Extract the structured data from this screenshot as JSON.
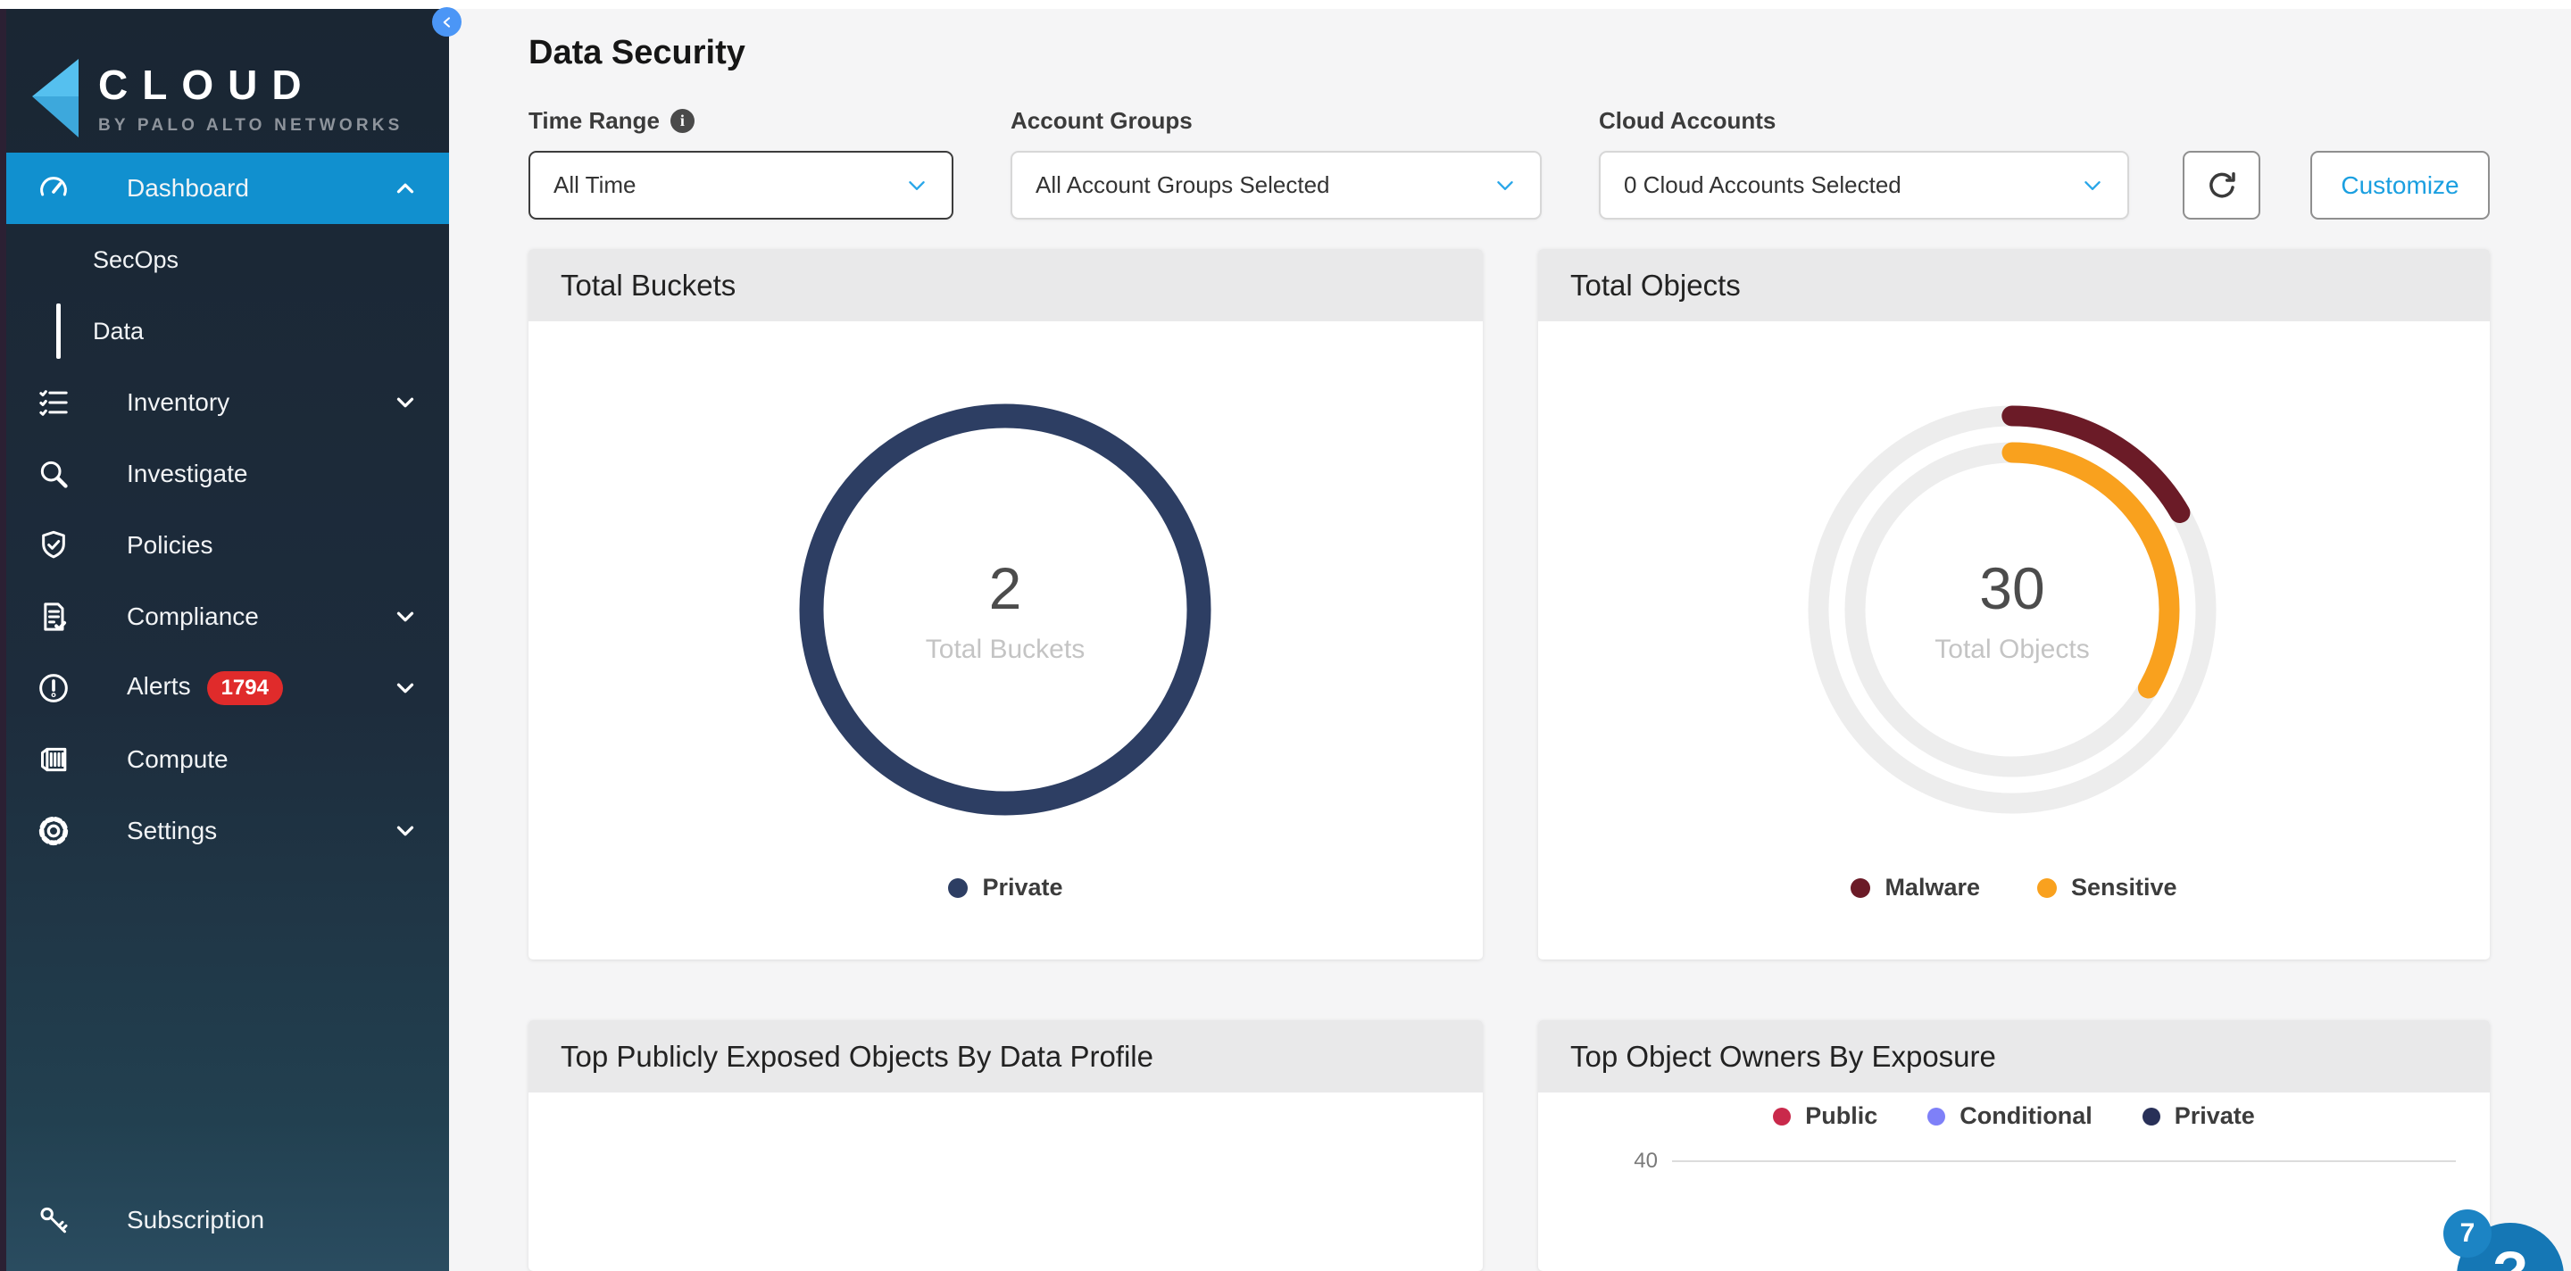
{
  "window": {
    "collapse_tooltip": "collapse sidebar"
  },
  "sidebar": {
    "logo": {
      "title": "CLOUD",
      "subtitle": "BY PALO ALTO NETWORKS"
    },
    "items": [
      {
        "label": "Dashboard",
        "icon": "gauge-icon",
        "active": true,
        "chevron": "up"
      },
      {
        "label": "SecOps",
        "sub": true
      },
      {
        "label": "Data",
        "sub": true,
        "selected": true
      },
      {
        "label": "Inventory",
        "icon": "list-check-icon",
        "chevron": "down"
      },
      {
        "label": "Investigate",
        "icon": "search-icon"
      },
      {
        "label": "Policies",
        "icon": "shield-check-icon"
      },
      {
        "label": "Compliance",
        "icon": "document-check-icon",
        "chevron": "down"
      },
      {
        "label": "Alerts",
        "icon": "alert-circle-icon",
        "badge": "1794",
        "chevron": "down"
      },
      {
        "label": "Compute",
        "icon": "container-icon"
      },
      {
        "label": "Settings",
        "icon": "gear-icon",
        "chevron": "down"
      },
      {
        "label": "Subscription",
        "icon": "key-icon"
      }
    ]
  },
  "header": {
    "title": "Data Security"
  },
  "filters": {
    "time_range": {
      "label": "Time Range",
      "value": "All Time",
      "info_icon_glyph": "i"
    },
    "account_groups": {
      "label": "Account Groups",
      "value": "All Account Groups Selected"
    },
    "cloud_accounts": {
      "label": "Cloud Accounts",
      "value": "0 Cloud Accounts Selected"
    },
    "customize_label": "Customize"
  },
  "help_widget": {
    "badge_count": "7",
    "icon": "?"
  },
  "colors": {
    "active_blue": "#1190cf",
    "customize_blue": "#1a9fe0",
    "badge_red": "#e02b2b",
    "help_blue": "#1577b5"
  },
  "chart_data": [
    {
      "type": "donut",
      "title": "Total Buckets",
      "center_value": "2",
      "center_label": "Total Buckets",
      "total": 2,
      "segments": [
        {
          "label": "Private",
          "value": 2,
          "color": "#2d3e63",
          "ring": 0
        }
      ],
      "legend": [
        {
          "label": "Private",
          "color": "#2d3e63"
        }
      ],
      "legend_position": "bottom"
    },
    {
      "type": "donut",
      "title": "Total Objects",
      "center_value": "30",
      "center_label": "Total Objects",
      "total": 30,
      "segments": [
        {
          "label": "Malware",
          "value": 5,
          "color": "#6b1b27",
          "ring": 0
        },
        {
          "label": "Sensitive",
          "value": 10,
          "color": "#f9a11e",
          "ring": 1
        }
      ],
      "legend": [
        {
          "label": "Malware",
          "color": "#6b1b27"
        },
        {
          "label": "Sensitive",
          "color": "#f9a11e"
        }
      ],
      "legend_position": "bottom",
      "track_color": "#ededed"
    },
    {
      "type": "bar",
      "title": "Top Publicly Exposed Objects By Data Profile",
      "note": "chart body cut off at bottom of screenshot; no bars or axes visible"
    },
    {
      "type": "bar",
      "title": "Top Object Owners By Exposure",
      "legend": [
        {
          "label": "Public",
          "color": "#c9294b"
        },
        {
          "label": "Conditional",
          "color": "#7e80f8"
        },
        {
          "label": "Private",
          "color": "#283058"
        }
      ],
      "legend_position": "top",
      "y_ticks_visible": [
        40
      ],
      "note": "only topmost gridline (40) visible; bars cut off at bottom of screenshot"
    }
  ]
}
